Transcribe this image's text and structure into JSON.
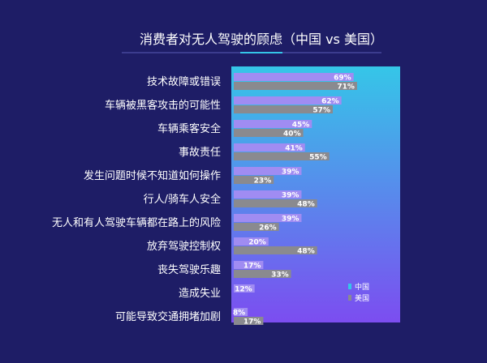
{
  "chart_data": {
    "type": "bar",
    "orientation": "horizontal",
    "title": "消费者对无人驾驶的顾虑（中国 vs 美国）",
    "categories": [
      "技术故障或错误",
      "车辆被黑客攻击的可能性",
      "车辆乘客安全",
      "事故责任",
      "发生问题时候不知道如何操作",
      "行人/骑车人安全",
      "无人和有人驾驶车辆都在路上的风险",
      "放弃驾驶控制权",
      "丧失驾驶乐趣",
      "造成失业",
      "可能导致交通拥堵加剧"
    ],
    "series": [
      {
        "name": "中国",
        "values": [
          69,
          62,
          45,
          41,
          39,
          39,
          39,
          20,
          17,
          12,
          8
        ],
        "labels": [
          "69%",
          "62%",
          "45%",
          "41%",
          "39%",
          "39%",
          "39%",
          "20%",
          "17%",
          "12%",
          "8%"
        ]
      },
      {
        "name": "美国",
        "values": [
          71,
          57,
          40,
          55,
          23,
          48,
          26,
          48,
          33,
          null,
          17
        ],
        "labels": [
          "71%",
          "57%",
          "40%",
          "55%",
          "23%",
          "48%",
          "26%",
          "48%",
          "33%",
          "",
          "17%"
        ]
      }
    ],
    "xlim": [
      0,
      80
    ],
    "legend_position": "bottom-right",
    "grid": false,
    "colors": {
      "background": "#1e1d66",
      "title_text": "#ffffff",
      "category_text": "#ffffff",
      "china_bar": "#a08cf2",
      "usa_bar": "#8a8a8f",
      "value_text": "#ffffff",
      "panel_gradient_top": "#35c6e8",
      "panel_gradient_bottom": "#7c4df0",
      "legend_text": "#ffffff"
    }
  }
}
